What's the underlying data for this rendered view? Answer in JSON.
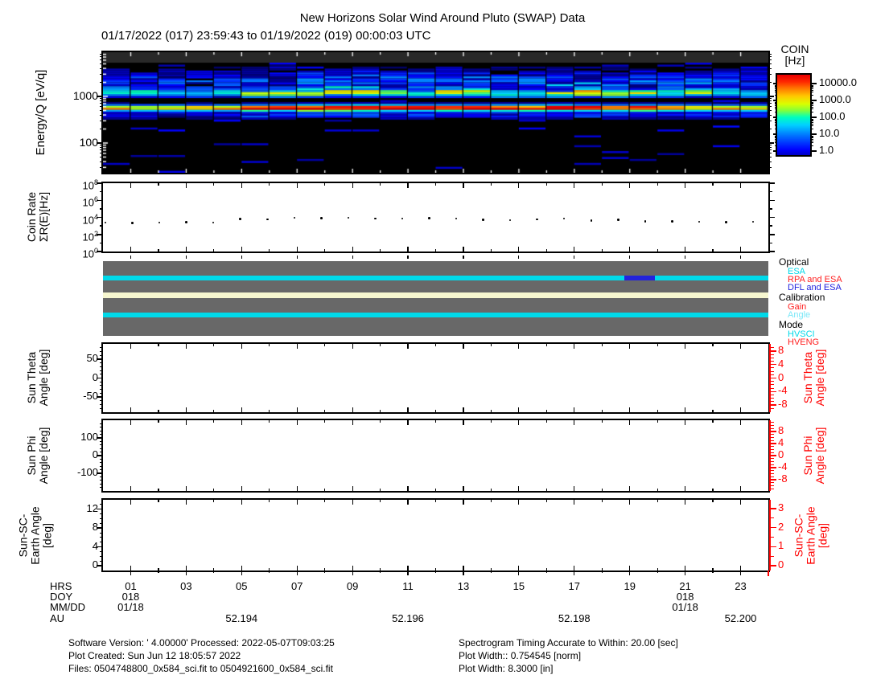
{
  "title": "New Horizons Solar Wind Around Pluto (SWAP) Data",
  "subtitle": "01/17/2022 (017) 23:59:43 to 01/19/2022 (019) 00:00:03 UTC",
  "colorbar": {
    "title_line1": "COIN",
    "title_line2": "[Hz]",
    "ticks": [
      "10000.0",
      "1000.0",
      "100.0",
      "10.0",
      "1.0"
    ],
    "tick_values": [
      10000,
      1000,
      100,
      10,
      1
    ]
  },
  "chart_data": [
    {
      "id": "energy-spectrogram",
      "type": "heatmap",
      "ylabel": "Energy/Q [eV/q]",
      "yaxis_log": true,
      "yrange_ev_per_q": [
        23,
        8900
      ],
      "ytick_labels": [
        "1000",
        "100"
      ],
      "ytick_values": [
        1000,
        100
      ],
      "xrange_hours": [
        0,
        24
      ],
      "time_columns": 24,
      "colorbar_label": "COIN [Hz]",
      "colorbar_range": [
        1.0,
        10000.0
      ],
      "bands": [
        {
          "name": "suprathermal-gray-band",
          "energy_range_ev": [
            5500,
            8900
          ],
          "style": "uniform-dark-gray"
        },
        {
          "name": "solar-wind-proton-core",
          "center_ev": 560,
          "color_peak": "orange-red"
        },
        {
          "name": "alpha-particle-band",
          "center_ev": 1150,
          "color_peak": "cyan-green"
        },
        {
          "name": "broad-suprathermal-blue",
          "energy_range_ev": [
            1300,
            4500
          ],
          "color_peak": "blue"
        }
      ],
      "column_intensity": [
        0.58,
        0.55,
        0.57,
        0.6,
        0.57,
        0.72,
        0.7,
        0.78,
        0.76,
        0.78,
        0.73,
        0.74,
        0.77,
        0.75,
        0.68,
        0.66,
        0.72,
        0.77,
        0.67,
        0.7,
        0.62,
        0.61,
        0.58,
        0.6
      ]
    },
    {
      "id": "coin-rate",
      "type": "scatter",
      "ylabel_lines": [
        "Coin Rate",
        "ΣR(E)[Hz]"
      ],
      "yaxis_log": true,
      "ytick_labels": [
        "10^8",
        "10^6",
        "10^4",
        "10^2",
        "10^0"
      ],
      "ytick_exponents": [
        8,
        6,
        4,
        2,
        0
      ],
      "x_hours_range": [
        0,
        24
      ],
      "values_hz": [
        2400,
        2300,
        2500,
        2700,
        2500,
        6500,
        6000,
        8500,
        8000,
        8500,
        7000,
        7000,
        8000,
        7000,
        5000,
        4500,
        6000,
        7500,
        4200,
        5000,
        3500,
        3400,
        3000,
        2600,
        3200
      ]
    },
    {
      "id": "instrument-status",
      "type": "status-bars",
      "background_color": "#686868",
      "groups": [
        {
          "label": "Optical",
          "legend": [
            {
              "label": "ESA",
              "color": "#00d9e9"
            },
            {
              "label": "RPA and ESA",
              "color": "#ff2020"
            },
            {
              "label": "DFL and ESA",
              "color": "#2323dd"
            }
          ],
          "stripe": {
            "base_state": "ESA",
            "base_color": "#00d9e9",
            "segments": [
              {
                "state": "DFL and ESA",
                "color": "#2323dd",
                "start_hour": 18.8,
                "end_hour": 19.9
              }
            ]
          }
        },
        {
          "label": "Calibration",
          "legend": [
            {
              "label": "Gain",
              "color": "#ff2020"
            },
            {
              "label": "Angle",
              "color": "#7ae8f8"
            }
          ],
          "stripe": {
            "base_state": "none",
            "base_color": "#f7f7d0",
            "segments": []
          }
        },
        {
          "label": "Mode",
          "legend": [
            {
              "label": "HVSCI",
              "color": "#00d9e9"
            },
            {
              "label": "HVENG",
              "color": "#ff2020"
            }
          ],
          "stripe": {
            "base_state": "HVSCI",
            "base_color": "#00d9e9",
            "segments": []
          }
        }
      ]
    },
    {
      "id": "sun-theta-angle",
      "type": "line",
      "ylabel_lines": [
        "Sun Theta",
        "Angle [deg]"
      ],
      "left_ticks": [
        50,
        0,
        -50
      ],
      "left_minor_step": 10,
      "right_ticks": [
        8,
        4,
        0,
        -4,
        -8
      ],
      "right_label_lines": [
        "Sun Theta",
        "Angle [deg]"
      ],
      "series": []
    },
    {
      "id": "sun-phi-angle",
      "type": "line",
      "ylabel_lines": [
        "Sun Phi",
        "Angle [deg]"
      ],
      "left_ticks": [
        100,
        0,
        -100
      ],
      "left_minor_step": 20,
      "right_ticks": [
        8,
        4,
        0,
        -4,
        -8
      ],
      "right_label_lines": [
        "Sun Phi",
        "Angle [deg]"
      ],
      "series": []
    },
    {
      "id": "sun-sc-earth-angle",
      "type": "line",
      "ylabel_lines": [
        "Sun-SC-",
        "Earth Angle",
        "[deg]"
      ],
      "left_ticks": [
        12,
        8,
        4,
        0
      ],
      "left_minor_step": 1,
      "right_ticks": [
        3,
        2,
        1,
        0
      ],
      "right_label_lines": [
        "Sun-SC-",
        "Earth Angle",
        "[deg]"
      ],
      "series": []
    }
  ],
  "x_axis": {
    "major_tick_hours": [
      1,
      3,
      5,
      7,
      9,
      11,
      13,
      15,
      17,
      19,
      21,
      23
    ],
    "rows": [
      {
        "label": "HRS",
        "ticks": [
          {
            "hour": 1,
            "text": "01"
          },
          {
            "hour": 3,
            "text": "03"
          },
          {
            "hour": 5,
            "text": "05"
          },
          {
            "hour": 7,
            "text": "07"
          },
          {
            "hour": 9,
            "text": "09"
          },
          {
            "hour": 11,
            "text": "11"
          },
          {
            "hour": 13,
            "text": "13"
          },
          {
            "hour": 15,
            "text": "15"
          },
          {
            "hour": 17,
            "text": "17"
          },
          {
            "hour": 19,
            "text": "19"
          },
          {
            "hour": 21,
            "text": "21"
          },
          {
            "hour": 23,
            "text": "23"
          }
        ]
      },
      {
        "label": "DOY",
        "ticks": [
          {
            "hour": 1,
            "text": "018"
          },
          {
            "hour": 21,
            "text": "018"
          }
        ]
      },
      {
        "label": "MM/DD",
        "ticks": [
          {
            "hour": 1,
            "text": "01/18"
          },
          {
            "hour": 21,
            "text": "01/18"
          }
        ]
      },
      {
        "label": "AU",
        "ticks": [
          {
            "hour": 5,
            "text": "52.194"
          },
          {
            "hour": 11,
            "text": "52.196"
          },
          {
            "hour": 17,
            "text": "52.198"
          },
          {
            "hour": 23,
            "text": "52.200"
          }
        ]
      }
    ]
  },
  "footer": {
    "left": [
      "Software Version:  ' 4.00000'  Processed: 2022-05-07T09:03:25",
      "Plot Created: Sun Jun 12 18:05:57 2022",
      "Files: 0504748800_0x584_sci.fit to 0504921600_0x584_sci.fit"
    ],
    "right": [
      "Spectrogram Timing Accurate to Within: 20.00 [sec]",
      "Plot Width:: 0.754545 [norm]",
      "Plot Width: 8.3000 [in]"
    ]
  },
  "colors": {
    "axis_red": "#ff0000",
    "status_gray": "#686868",
    "status_cream": "#f7f7d0",
    "status_cyan": "#00d9e9",
    "status_blue": "#2323dd",
    "spectrogram_top_band": "#282828"
  }
}
